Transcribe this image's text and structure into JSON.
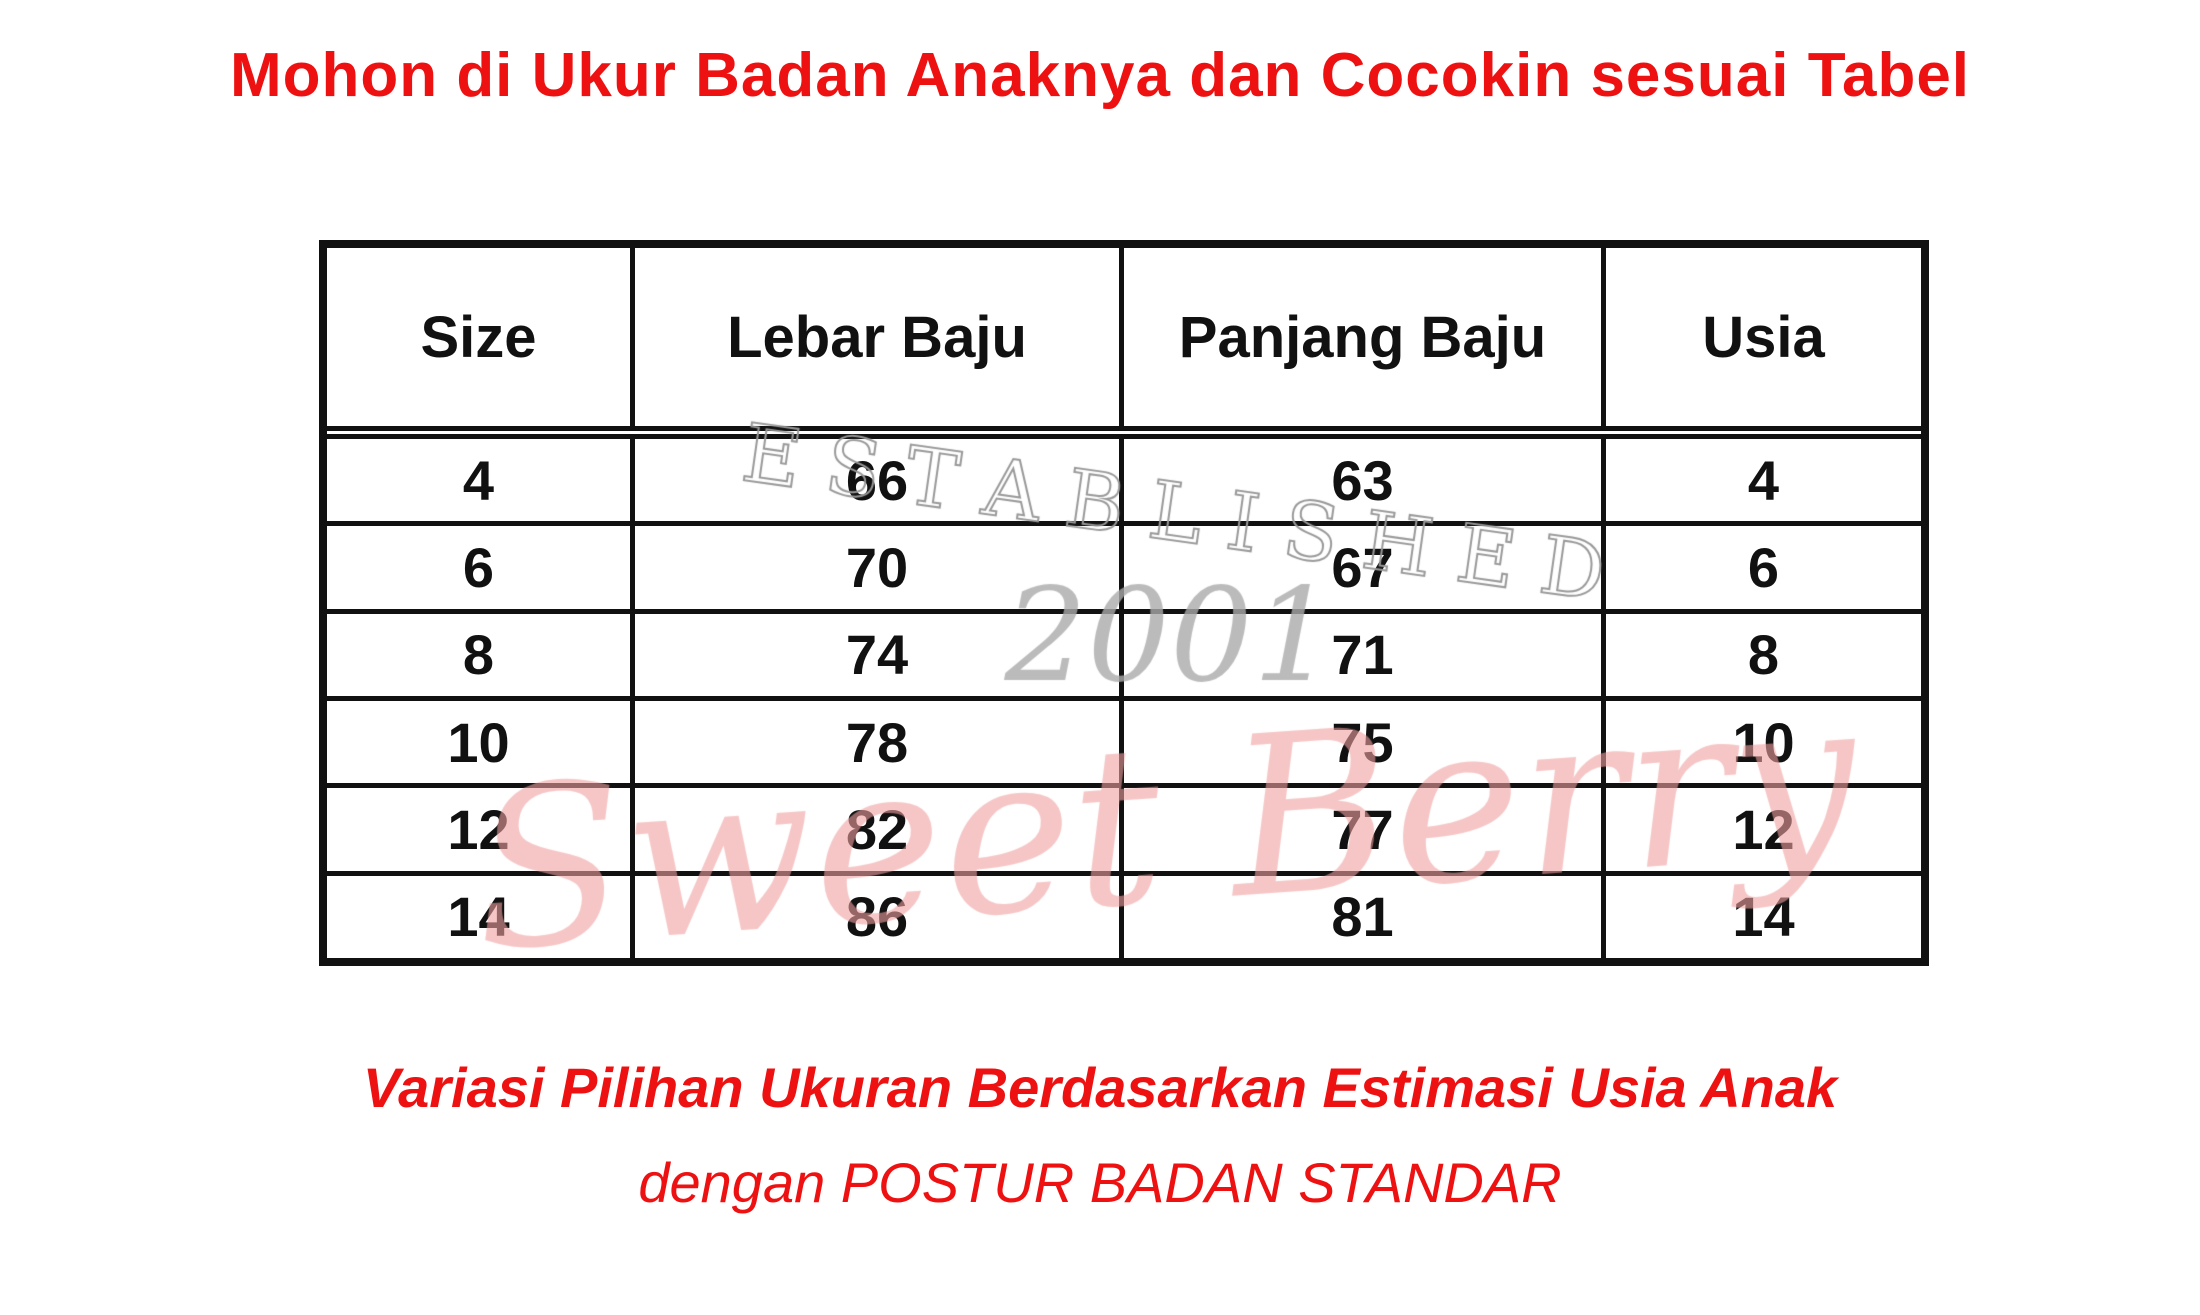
{
  "title": "Mohon di Ukur Badan Anaknya dan Cocokin sesuai Tabel",
  "table": {
    "headers": [
      "Size",
      "Lebar Baju",
      "Panjang Baju",
      "Usia"
    ],
    "rows": [
      [
        "4",
        "66",
        "63",
        "4"
      ],
      [
        "6",
        "70",
        "67",
        "6"
      ],
      [
        "8",
        "74",
        "71",
        "8"
      ],
      [
        "10",
        "78",
        "75",
        "10"
      ],
      [
        "12",
        "82",
        "77",
        "12"
      ],
      [
        "14",
        "86",
        "81",
        "14"
      ]
    ]
  },
  "watermark": {
    "line1": "ESTABLISHED",
    "line2": "2001",
    "brand": "Sweet Berry"
  },
  "subtitle": "Variasi Pilihan Ukuran Berdasarkan Estimasi Usia Anak",
  "subtitle2": "dengan POSTUR BADAN STANDAR",
  "colors": {
    "accent": "#ee1111",
    "watermark_pink": "#f0a0a0",
    "watermark_gray": "#999999"
  }
}
